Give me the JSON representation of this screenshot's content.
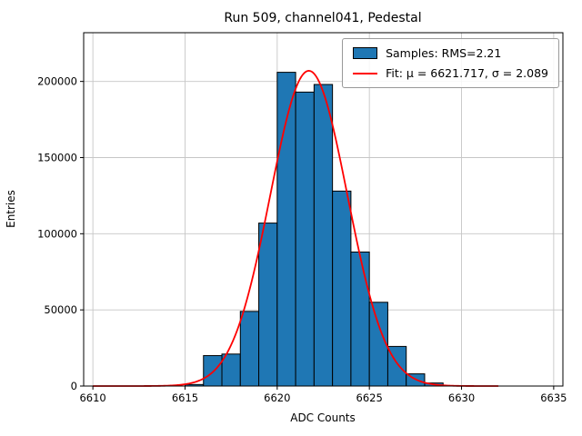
{
  "title": "Run 509, channel041, Pedestal",
  "chart_data": {
    "type": "bar",
    "subtype": "histogram-with-gaussian-fit",
    "title": "Run 509, channel041, Pedestal",
    "xlabel": "ADC Counts",
    "ylabel": "Entries",
    "xlim": [
      6609.5,
      6635.5
    ],
    "ylim": [
      0,
      232000
    ],
    "xticks": [
      6610,
      6615,
      6620,
      6625,
      6630,
      6635
    ],
    "yticks": [
      0,
      50000,
      100000,
      150000,
      200000
    ],
    "grid": true,
    "grid_color": "#c6c6c6",
    "bar_color": "#1f77b4",
    "bar_edge_color": "#000000",
    "fit_color": "#ff0000",
    "bins": {
      "start": 6615,
      "width": 1,
      "counts": [
        1000,
        20000,
        21000,
        49000,
        107000,
        206000,
        193000,
        198000,
        128000,
        88000,
        55000,
        26000,
        8000,
        2000
      ]
    },
    "fit": {
      "mu": 6621.717,
      "sigma": 2.089,
      "amplitude": 207000,
      "x_start": 6610,
      "x_end": 6632
    },
    "legend": [
      {
        "type": "patch",
        "color": "#1f77b4",
        "label": "Samples: RMS=2.21"
      },
      {
        "type": "line",
        "color": "#ff0000",
        "label": "Fit: μ = 6621.717, σ = 2.089"
      }
    ]
  }
}
